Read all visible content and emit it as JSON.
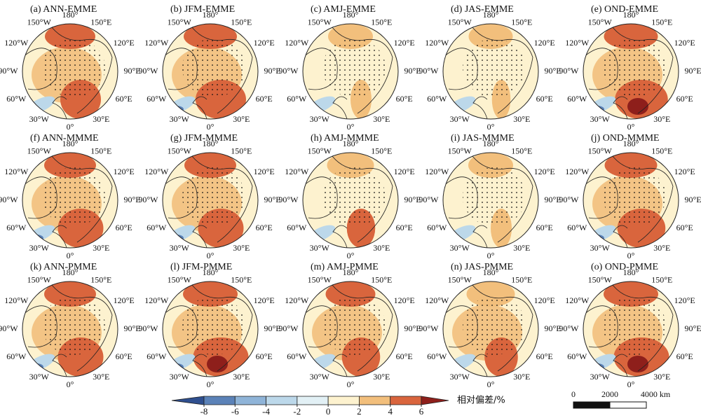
{
  "panels": [
    {
      "title": "(a) ANN-EMME"
    },
    {
      "title": "(b) JFM-EMME"
    },
    {
      "title": "(c) AMJ-EMME"
    },
    {
      "title": "(d) JAS-EMME"
    },
    {
      "title": "(e) OND-EMME"
    },
    {
      "title": "(f) ANN-MMME"
    },
    {
      "title": "(g) JFM-MMME"
    },
    {
      "title": "(h) AMJ-MMME"
    },
    {
      "title": "(i) JAS-MMME"
    },
    {
      "title": "(j) OND-MMME"
    },
    {
      "title": "(k) ANN-PMME"
    },
    {
      "title": "(l) JFM-PMME"
    },
    {
      "title": "(m) AMJ-PMME"
    },
    {
      "title": "(n) JAS-PMME"
    },
    {
      "title": "(o) OND-PMME"
    }
  ],
  "longitude_labels": [
    "180°",
    "150°E",
    "120°E",
    "90°E",
    "60°E",
    "30°E",
    "0°",
    "30°W",
    "60°W",
    "90°W",
    "120°W",
    "150°W"
  ],
  "colorbar": {
    "ticks": [
      -8,
      -6,
      -4,
      -2,
      0,
      2,
      4,
      6
    ],
    "colors": [
      "#2f4f8f",
      "#5b82b8",
      "#8fb4d8",
      "#bcd8ea",
      "#e2f0f5",
      "#fdf2cf",
      "#f2bf7c",
      "#d9653d",
      "#8e1f1b"
    ],
    "label": "相对偏差/%"
  },
  "scale_bar": {
    "labels": [
      "0",
      "2000",
      "4000 km"
    ]
  }
}
